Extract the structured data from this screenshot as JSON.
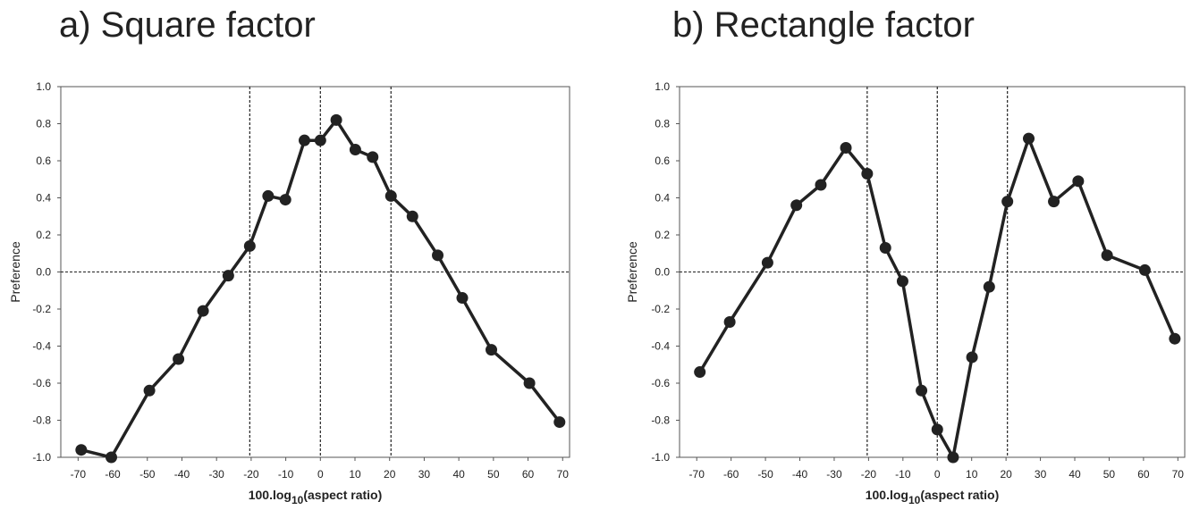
{
  "chart_data": [
    {
      "type": "line",
      "title": "a) Square factor",
      "ylabel": "Preference",
      "xlabel_main": "100.log",
      "xlabel_sub": "10",
      "xlabel_tail": "(aspect ratio)",
      "xlim": [
        -75,
        72
      ],
      "ylim": [
        -1.0,
        1.0
      ],
      "xticks": [
        -70,
        -60,
        -50,
        -40,
        -30,
        -20,
        -10,
        0,
        10,
        20,
        30,
        40,
        50,
        60,
        70
      ],
      "yticks": [
        -1.0,
        -0.8,
        -0.6,
        -0.4,
        -0.2,
        0.0,
        0.2,
        0.4,
        0.6,
        0.8,
        1.0
      ],
      "ytick_labels": [
        "-1.0",
        "-0.8",
        "-0.6",
        "-0.4",
        "-0.2",
        "0.0",
        "0.2",
        "0.4",
        "0.6",
        "0.8",
        "1.0"
      ],
      "vlines": [
        -20.4,
        0,
        20.4
      ],
      "hline": 0,
      "series": [
        {
          "x": [
            -69.1,
            -60.4,
            -49.4,
            -41,
            -33.9,
            -26.6,
            -20.4,
            -15.1,
            -10.1,
            -4.6,
            0,
            4.6,
            10.1,
            15.1,
            20.4,
            26.6,
            33.9,
            41,
            49.4,
            60.4,
            69.1
          ],
          "y": [
            -0.96,
            -1.0,
            -0.64,
            -0.47,
            -0.21,
            -0.02,
            0.14,
            0.41,
            0.39,
            0.71,
            0.71,
            0.82,
            0.66,
            0.62,
            0.41,
            0.3,
            0.09,
            -0.14,
            -0.42,
            -0.6,
            -0.81
          ]
        }
      ]
    },
    {
      "type": "line",
      "title": "b) Rectangle factor",
      "ylabel": "Preference",
      "xlabel_main": "100.log",
      "xlabel_sub": "10",
      "xlabel_tail": "(aspect ratio)",
      "xlim": [
        -75,
        72
      ],
      "ylim": [
        -1.0,
        1.0
      ],
      "xticks": [
        -70,
        -60,
        -50,
        -40,
        -30,
        -20,
        -10,
        0,
        10,
        20,
        30,
        40,
        50,
        60,
        70
      ],
      "yticks": [
        -1.0,
        -0.8,
        -0.6,
        -0.4,
        -0.2,
        0.0,
        0.2,
        0.4,
        0.6,
        0.8,
        1.0
      ],
      "ytick_labels": [
        "-1.0",
        "-0.8",
        "-0.6",
        "-0.4",
        "-0.2",
        "0.0",
        "0.2",
        "0.4",
        "0.6",
        "0.8",
        "1.0"
      ],
      "vlines": [
        -20.4,
        0,
        20.4
      ],
      "hline": 0,
      "series": [
        {
          "x": [
            -69.1,
            -60.4,
            -49.4,
            -41,
            -33.9,
            -26.6,
            -20.4,
            -15.1,
            -10.1,
            -4.6,
            0,
            4.6,
            10.1,
            15.1,
            20.4,
            26.6,
            33.9,
            41,
            49.4,
            60.4,
            69.1
          ],
          "y": [
            -0.54,
            -0.27,
            0.05,
            0.36,
            0.47,
            0.67,
            0.53,
            0.13,
            -0.05,
            -0.64,
            -0.85,
            -1.0,
            -0.46,
            -0.08,
            0.38,
            0.72,
            0.38,
            0.49,
            0.09,
            0.01,
            -0.36
          ]
        }
      ]
    }
  ]
}
